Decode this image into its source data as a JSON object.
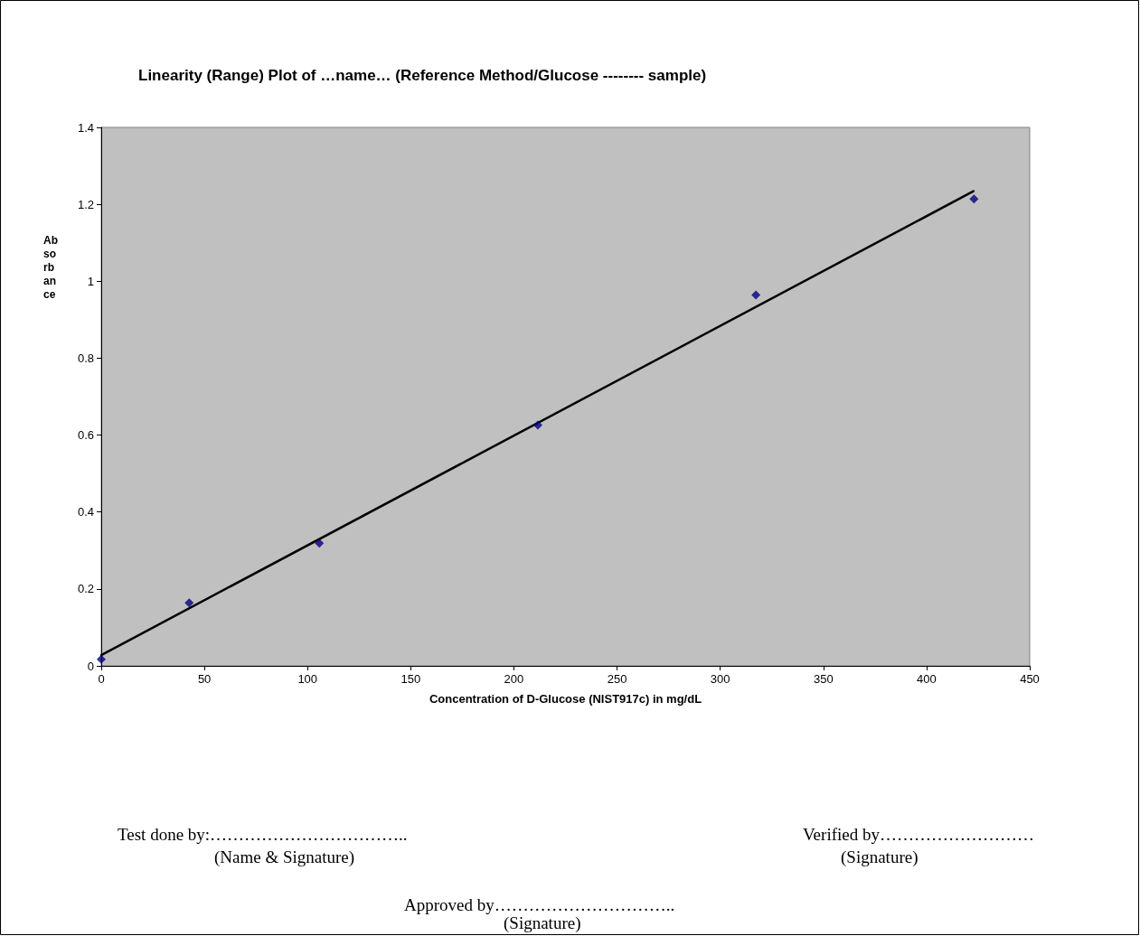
{
  "chart_data": {
    "type": "scatter",
    "title": "Linearity (Range) Plot of …name… (Reference Method/Glucose -------- sample)",
    "xlabel": "Concentration of D-Glucose (NIST917c) in mg/dL",
    "ylabel": "Absorbance",
    "series": [
      {
        "color": "#000080",
        "marker": "diamond",
        "x": [
          0,
          42.6,
          105.7,
          211.6,
          317.3,
          423
        ],
        "values": [
          0.017,
          0.164,
          0.319,
          0.626,
          0.964,
          1.214
        ]
      },
      {
        "type": "line",
        "color": "#000000",
        "marker": "none",
        "x": [
          0,
          422.7
        ],
        "values": [
          0.028,
          1.234
        ]
      }
    ],
    "xlim": [
      0,
      450
    ],
    "xticks": [
      0,
      50,
      100,
      150,
      200,
      250,
      300,
      350,
      400,
      450
    ],
    "ylim": [
      0,
      1.4
    ],
    "yticks": [
      0,
      0.2,
      0.4,
      0.6,
      0.8,
      1,
      1.2,
      1.4
    ],
    "grid": false,
    "annotations": [
      "Test done by:……………………………..",
      "(Name & Signature)",
      "Verified by………………………",
      "(Signature)",
      "Approved by…………………………..",
      "(Signature)"
    ]
  }
}
